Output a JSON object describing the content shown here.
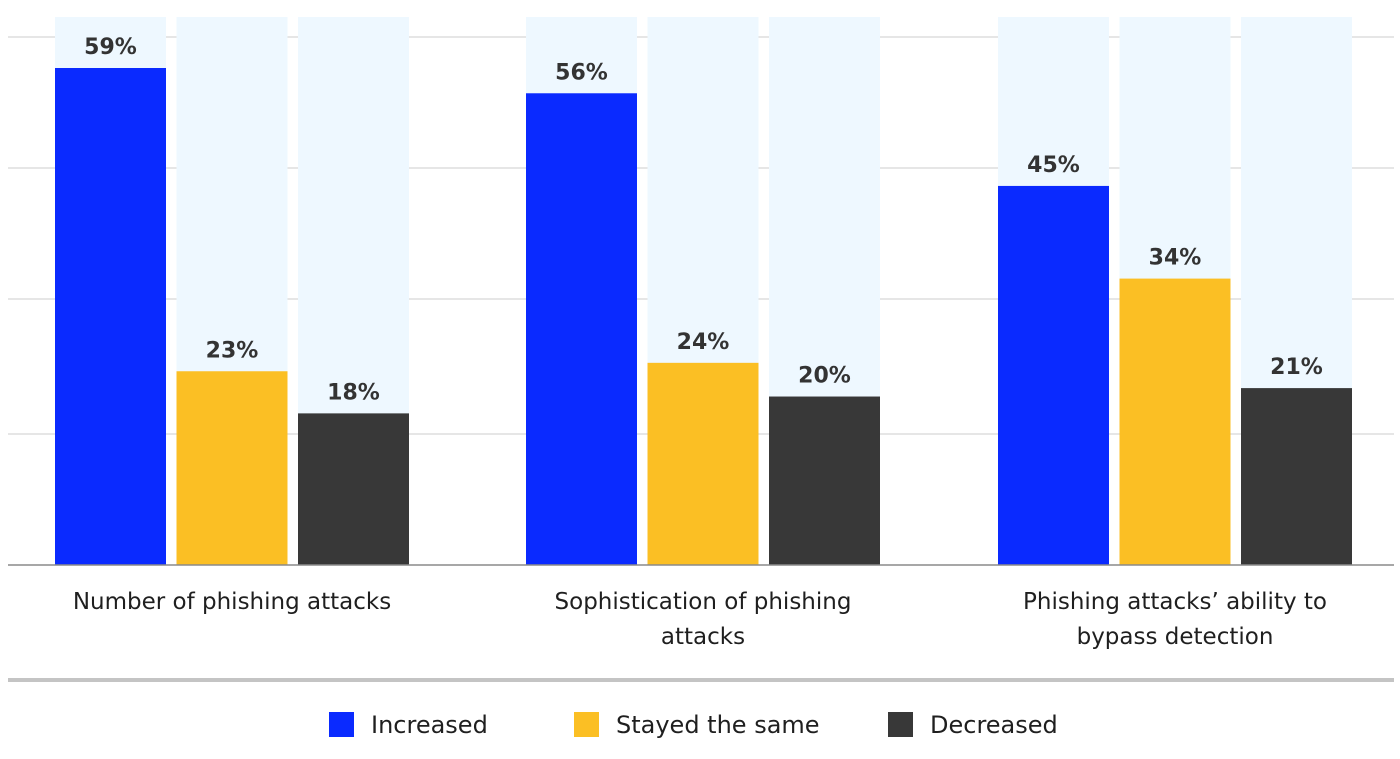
{
  "chart_data": {
    "type": "bar",
    "categories": [
      [
        "Number of phishing attacks"
      ],
      [
        "Sophistication of phishing",
        "attacks"
      ],
      [
        "Phishing attacks’ ability to",
        "bypass detection"
      ]
    ],
    "series": [
      {
        "name": "Increased",
        "color": "#0a2aff",
        "values": [
          59,
          56,
          45
        ],
        "labels": [
          "59%",
          "56%",
          "45%"
        ]
      },
      {
        "name": "Stayed the same",
        "color": "#fbbf24",
        "values": [
          23,
          24,
          34
        ],
        "labels": [
          "23%",
          "24%",
          "34%"
        ]
      },
      {
        "name": "Decreased",
        "color": "#383838",
        "values": [
          18,
          20,
          21
        ],
        "labels": [
          "18%",
          "20%",
          "21%"
        ]
      }
    ],
    "ylim": [
      0,
      70
    ],
    "grid": true,
    "background_bar_color": "#eef8ff",
    "legend_position": "bottom"
  }
}
